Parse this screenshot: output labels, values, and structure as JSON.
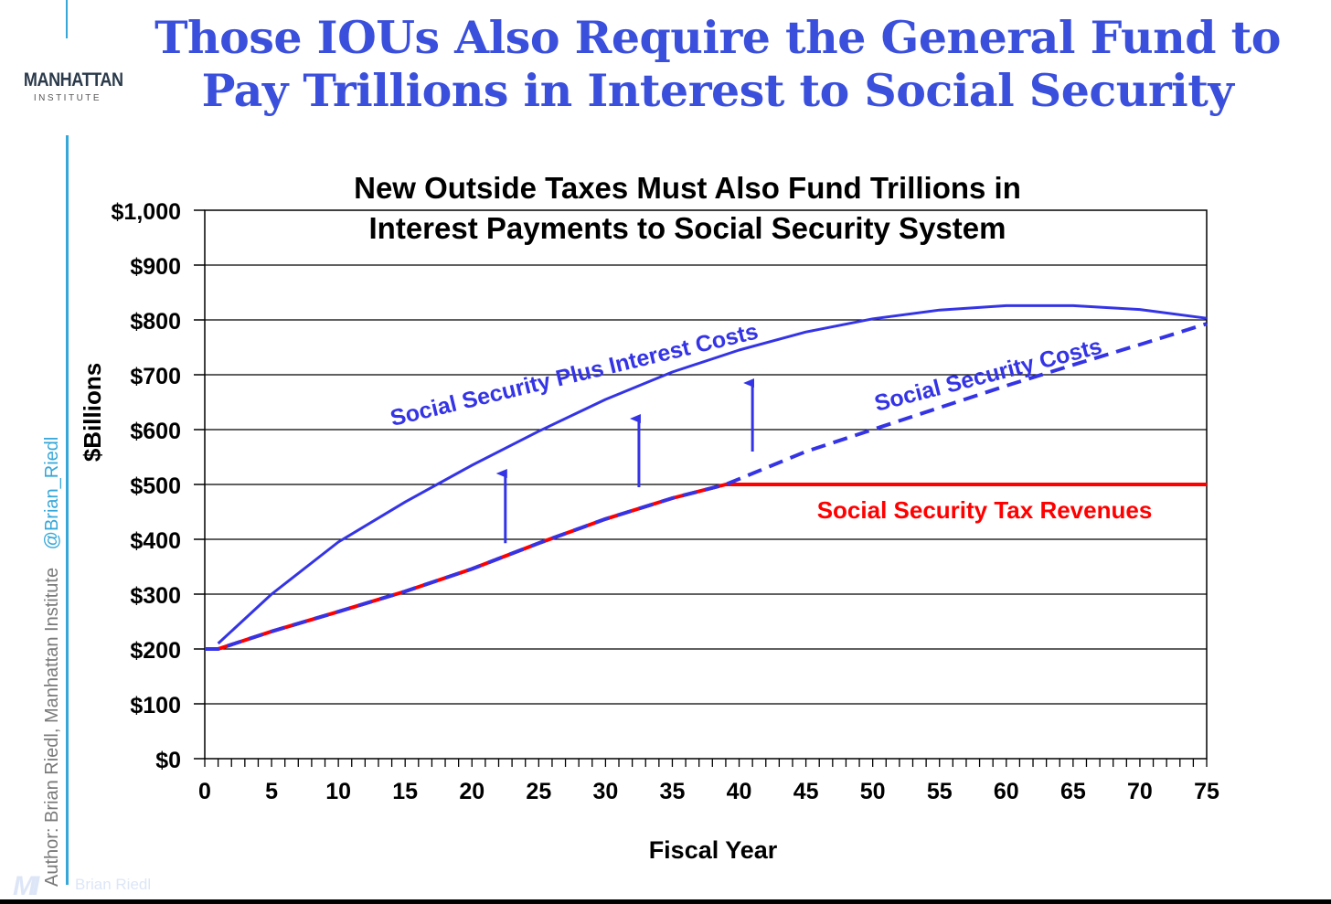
{
  "slide": {
    "title_line1": "Those IOUs Also Require the General Fund to",
    "title_line2": "Pay Trillions in Interest to Social Security",
    "logo_main": "MANHATTAN",
    "logo_sub": "INSTITUTE",
    "side_author": "Author: Brian Riedl, Manhattan Institute",
    "side_handle": "@Brian_Riedl",
    "footer_mark": "MI",
    "footer_name": "Brian Riedl"
  },
  "colors": {
    "title": "#3a4fdc",
    "accent_rule": "#35a7d9",
    "blue_series": "#3434e6",
    "red_series": "#ff0000",
    "text": "#000000"
  },
  "chart_data": {
    "type": "line",
    "title_line1": "New Outside Taxes Must Also Fund Trillions in",
    "title_line2": "Interest Payments to Social Security System",
    "xlabel": "Fiscal Year",
    "ylabel": "$Billions",
    "xlim": [
      0,
      75
    ],
    "ylim": [
      0,
      1000
    ],
    "x_ticks": [
      0,
      5,
      10,
      15,
      20,
      25,
      30,
      35,
      40,
      45,
      50,
      55,
      60,
      65,
      70,
      75
    ],
    "y_ticks": [
      0,
      100,
      200,
      300,
      400,
      500,
      600,
      700,
      800,
      900,
      1000
    ],
    "y_tick_labels": [
      "$0",
      "$100",
      "$200",
      "$300",
      "$400",
      "$500",
      "$600",
      "$700",
      "$800",
      "$900",
      "$1,000"
    ],
    "grid": "horizontal",
    "series": [
      {
        "name": "Social Security Plus Interest Costs",
        "style": "solid",
        "color": "#3434e6",
        "x": [
          1,
          5,
          10,
          15,
          20,
          25,
          30,
          35,
          40,
          45,
          50,
          55,
          60,
          65,
          70,
          75
        ],
        "y": [
          210,
          300,
          395,
          468,
          535,
          597,
          655,
          705,
          745,
          778,
          802,
          818,
          826,
          826,
          819,
          803
        ]
      },
      {
        "name": "Social Security Costs",
        "style": "dashed",
        "color": "#3434e6",
        "x": [
          0,
          1,
          5,
          10,
          15,
          20,
          25,
          30,
          35,
          39,
          45,
          50,
          55,
          60,
          65,
          70,
          75
        ],
        "y": [
          200,
          200,
          232,
          268,
          305,
          346,
          393,
          437,
          475,
          500,
          560,
          600,
          640,
          680,
          718,
          755,
          793
        ]
      },
      {
        "name": "Social Security Tax Revenues",
        "style": "solid",
        "color": "#ff0000",
        "x": [
          0,
          1,
          5,
          10,
          15,
          20,
          25,
          30,
          35,
          39,
          45,
          50,
          55,
          60,
          65,
          70,
          75
        ],
        "y": [
          200,
          200,
          232,
          268,
          305,
          346,
          393,
          437,
          475,
          500,
          500,
          500,
          500,
          500,
          500,
          500,
          500
        ]
      }
    ],
    "arrows": [
      {
        "x": 22.5,
        "y_from": 393,
        "y_to": 520
      },
      {
        "x": 32.5,
        "y_from": 495,
        "y_to": 620
      },
      {
        "x": 41,
        "y_from": 560,
        "y_to": 685
      }
    ]
  }
}
